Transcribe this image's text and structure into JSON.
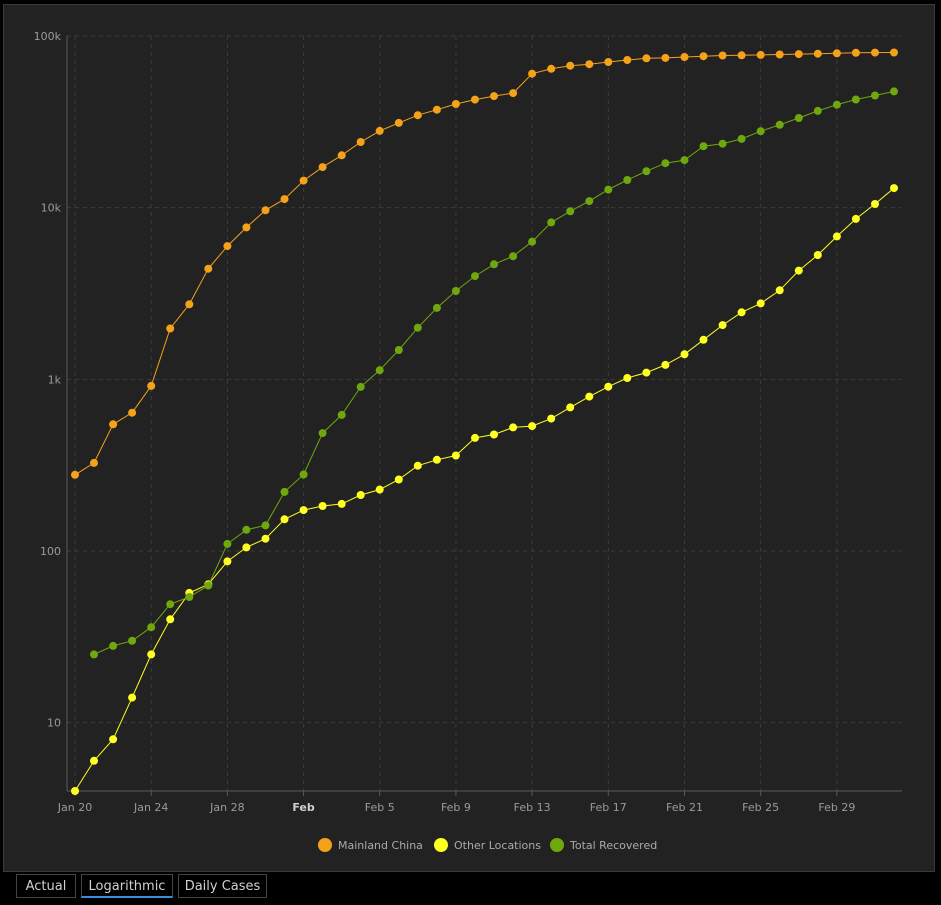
{
  "colors": {
    "background": "#222222",
    "grid": "#3c3c3c",
    "axis": "#5a5a5a",
    "mainland": "#f5a21b",
    "other": "#ffff21",
    "recovered": "#6fa80e"
  },
  "tabs": [
    {
      "label": "Actual",
      "active": false
    },
    {
      "label": "Logarithmic",
      "active": true
    },
    {
      "label": "Daily Cases",
      "active": false
    }
  ],
  "chart_data": {
    "type": "line",
    "title": "",
    "xlabel": "",
    "ylabel": "",
    "y_scale": "log",
    "ylim": [
      4,
      100000
    ],
    "y_ticks": [
      10,
      100,
      1000,
      10000,
      100000
    ],
    "y_tick_labels": [
      "10",
      "100",
      "1k",
      "10k",
      "100k"
    ],
    "x_start": "2020-01-20",
    "x_end": "2020-03-03",
    "x_ticks": [
      {
        "date": "2020-01-20",
        "label": "Jan 20",
        "major": false
      },
      {
        "date": "2020-01-24",
        "label": "Jan 24",
        "major": false
      },
      {
        "date": "2020-01-28",
        "label": "Jan 28",
        "major": false
      },
      {
        "date": "2020-02-01",
        "label": "Feb",
        "major": true
      },
      {
        "date": "2020-02-05",
        "label": "Feb 5",
        "major": false
      },
      {
        "date": "2020-02-09",
        "label": "Feb 9",
        "major": false
      },
      {
        "date": "2020-02-13",
        "label": "Feb 13",
        "major": false
      },
      {
        "date": "2020-02-17",
        "label": "Feb 17",
        "major": false
      },
      {
        "date": "2020-02-21",
        "label": "Feb 21",
        "major": false
      },
      {
        "date": "2020-02-25",
        "label": "Feb 25",
        "major": false
      },
      {
        "date": "2020-02-29",
        "label": "Feb 29",
        "major": false
      }
    ],
    "grid": true,
    "legend_position": "bottom-center",
    "series": [
      {
        "name": "Mainland China",
        "color": "#f5a21b",
        "start_date": "2020-01-20",
        "values": [
          278,
          326,
          547,
          639,
          916,
          1979,
          2737,
          4409,
          5970,
          7678,
          9658,
          11221,
          14375,
          17238,
          20198,
          24136,
          28018,
          31161,
          34546,
          37198,
          40171,
          42638,
          44653,
          46472,
          60326,
          64437,
          67100,
          68500,
          70548,
          72436,
          74185,
          74576,
          75465,
          76288,
          76936,
          77150,
          77658,
          78064,
          78497,
          78824,
          79251,
          79826,
          80026,
          80151
        ]
      },
      {
        "name": "Other Locations",
        "color": "#ffff21",
        "start_date": "2020-01-20",
        "values": [
          4,
          6,
          8,
          14,
          25,
          40,
          57,
          64,
          87,
          105,
          118,
          153,
          173,
          183,
          188,
          212,
          228,
          261,
          314,
          340,
          360,
          456,
          477,
          525,
          534,
          591,
          686,
          793,
          906,
          1018,
          1095,
          1213,
          1400,
          1700,
          2069,
          2459,
          2769,
          3300,
          4300,
          5300,
          6800,
          8600,
          10500,
          13000
        ]
      },
      {
        "name": "Total Recovered",
        "color": "#6fa80e",
        "start_date": "2020-01-21",
        "values": [
          25,
          28,
          30,
          36,
          49,
          54,
          63,
          110,
          133,
          141,
          221,
          279,
          486,
          621,
          904,
          1131,
          1482,
          2000,
          2606,
          3271,
          3996,
          4676,
          5216,
          6339,
          8209,
          9519,
          10921,
          12740,
          14486,
          16300,
          18150,
          18937,
          22800,
          23576,
          25145,
          27900,
          30384,
          33286,
          36609,
          39775,
          42675,
          45000,
          47550
        ]
      }
    ]
  }
}
